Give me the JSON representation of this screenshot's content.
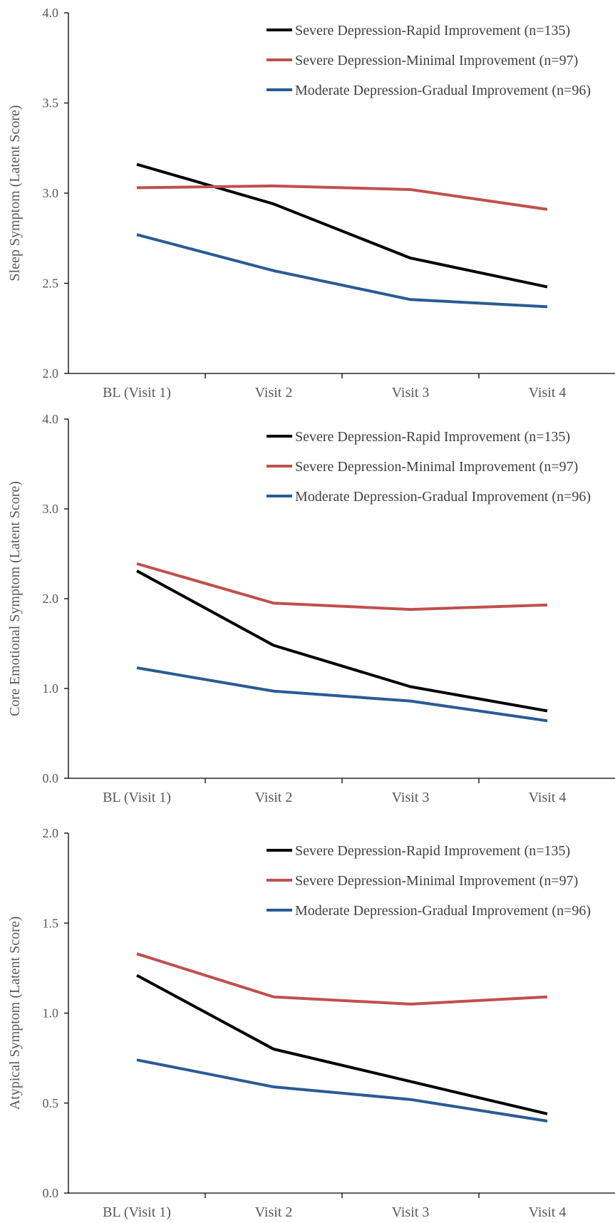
{
  "chart_data": [
    {
      "type": "line",
      "categories": [
        "BL (Visit 1)",
        "Visit 2",
        "Visit 3",
        "Visit 4"
      ],
      "ylabel": "Sleep Symptom (Latent Score)",
      "ylim": [
        2.0,
        4.0
      ],
      "yticks": [
        "2.0",
        "2.5",
        "3.0",
        "3.5",
        "4.0"
      ],
      "legend_position": "top-right",
      "grid": false,
      "series": [
        {
          "name": "Severe Depression-Rapid Improvement (n=135)",
          "color": "#000000",
          "values": [
            3.16,
            2.94,
            2.64,
            2.48
          ]
        },
        {
          "name": "Severe Depression-Minimal Improvement (n=97)",
          "color": "#c0504d",
          "values": [
            3.03,
            3.04,
            3.02,
            2.91
          ]
        },
        {
          "name": "Moderate Depression-Gradual Improvement (n=96)",
          "color": "#2a5b94",
          "values": [
            2.77,
            2.57,
            2.41,
            2.37
          ]
        }
      ]
    },
    {
      "type": "line",
      "categories": [
        "BL (Visit 1)",
        "Visit 2",
        "Visit 3",
        "Visit 4"
      ],
      "ylabel": "Core Emotional Symptom (Latent Score)",
      "ylim": [
        0.0,
        4.0
      ],
      "yticks": [
        "0.0",
        "1.0",
        "2.0",
        "3.0",
        "4.0"
      ],
      "legend_position": "top-right",
      "grid": false,
      "series": [
        {
          "name": "Severe Depression-Rapid Improvement (n=135)",
          "color": "#000000",
          "values": [
            2.31,
            1.48,
            1.02,
            0.75
          ]
        },
        {
          "name": "Severe Depression-Minimal Improvement (n=97)",
          "color": "#c0504d",
          "values": [
            2.39,
            1.95,
            1.88,
            1.93
          ]
        },
        {
          "name": "Moderate Depression-Gradual Improvement (n=96)",
          "color": "#2a5b94",
          "values": [
            1.23,
            0.97,
            0.86,
            0.64
          ]
        }
      ]
    },
    {
      "type": "line",
      "categories": [
        "BL (Visit 1)",
        "Visit 2",
        "Visit 3",
        "Visit 4"
      ],
      "ylabel": "Atypical Symptom (Latent Score)",
      "ylim": [
        0.0,
        2.0
      ],
      "yticks": [
        "0.0",
        "0.5",
        "1.0",
        "1.5",
        "2.0"
      ],
      "legend_position": "top-right",
      "grid": false,
      "series": [
        {
          "name": "Severe Depression-Rapid Improvement (n=135)",
          "color": "#000000",
          "values": [
            1.21,
            0.8,
            0.62,
            0.44
          ]
        },
        {
          "name": "Severe Depression-Minimal Improvement (n=97)",
          "color": "#c0504d",
          "values": [
            1.33,
            1.09,
            1.05,
            1.09
          ]
        },
        {
          "name": "Moderate Depression-Gradual Improvement (n=96)",
          "color": "#2a5b94",
          "values": [
            0.74,
            0.59,
            0.52,
            0.4
          ]
        }
      ]
    }
  ]
}
